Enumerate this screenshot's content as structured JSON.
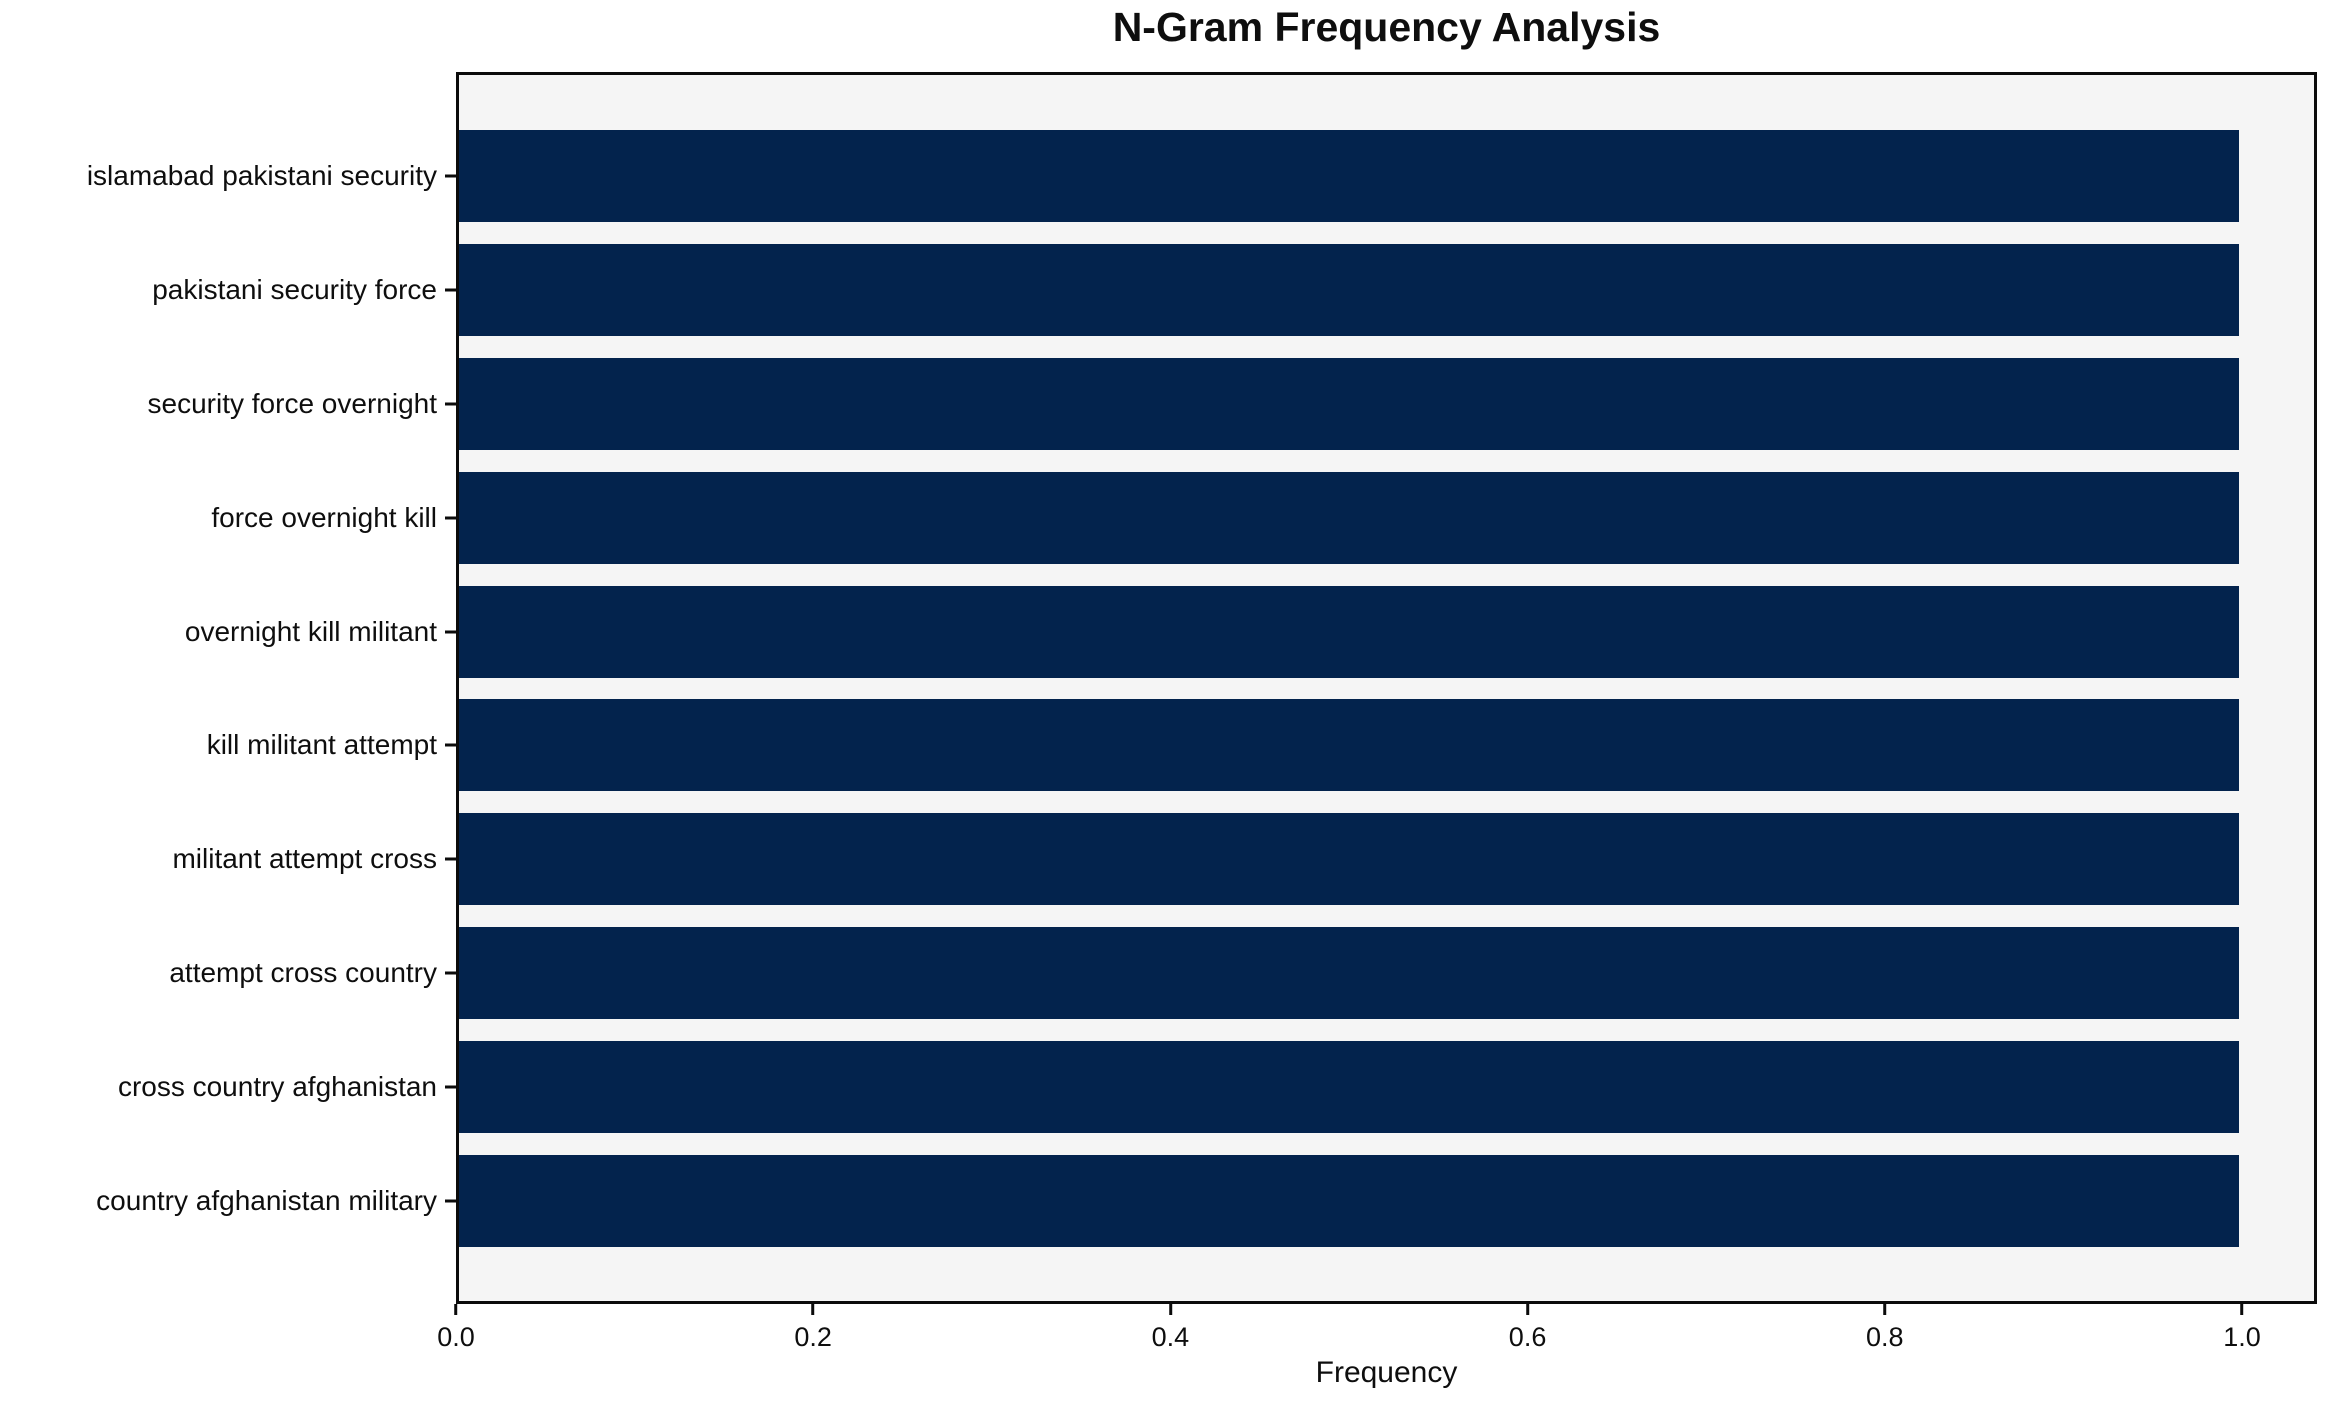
{
  "chart_data": {
    "type": "bar",
    "orientation": "horizontal",
    "title": "N-Gram Frequency Analysis",
    "xlabel": "Frequency",
    "ylabel": "",
    "categories": [
      "islamabad pakistani security",
      "pakistani security force",
      "security force overnight",
      "force overnight kill",
      "overnight kill militant",
      "kill militant attempt",
      "militant attempt cross",
      "attempt cross country",
      "cross country afghanistan",
      "country afghanistan military"
    ],
    "values": [
      1.0,
      1.0,
      1.0,
      1.0,
      1.0,
      1.0,
      1.0,
      1.0,
      1.0,
      1.0
    ],
    "x_ticks": [
      0.0,
      0.2,
      0.4,
      0.6,
      0.8,
      1.0
    ],
    "x_tick_labels": [
      "0.0",
      "0.2",
      "0.4",
      "0.6",
      "0.8",
      "1.0"
    ],
    "xlim": [
      0,
      1.042
    ],
    "bar_color": "#03234d",
    "plot_background": "#f5f5f5",
    "axis_color": "#0b0b0b",
    "grid": false,
    "legend_position": "none"
  }
}
